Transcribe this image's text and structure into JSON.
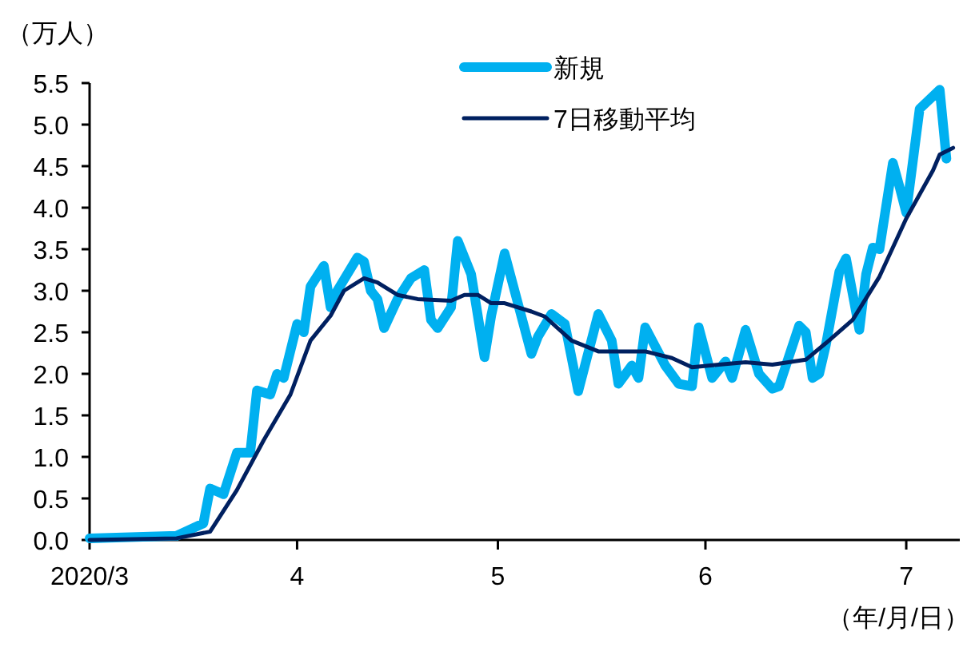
{
  "chart_data": {
    "type": "line",
    "ylabel": "（万人）",
    "xlabel": "（年/月/日）",
    "xlim": [
      "2020-03-01",
      "2020-07-09"
    ],
    "ylim": [
      0,
      5.5
    ],
    "xticks": [
      {
        "value": "2020-03-01",
        "label": "2020/3"
      },
      {
        "value": "2020-04-01",
        "label": "4"
      },
      {
        "value": "2020-05-01",
        "label": "5"
      },
      {
        "value": "2020-06-01",
        "label": "6"
      },
      {
        "value": "2020-07-01",
        "label": "7"
      }
    ],
    "yticks": [
      {
        "value": 0,
        "label": "0.0"
      },
      {
        "value": 0.5,
        "label": "0.5"
      },
      {
        "value": 1,
        "label": "1.0"
      },
      {
        "value": 1.5,
        "label": "1.5"
      },
      {
        "value": 2,
        "label": "2.0"
      },
      {
        "value": 2.5,
        "label": "2.5"
      },
      {
        "value": 3,
        "label": "3.0"
      },
      {
        "value": 3.5,
        "label": "3.5"
      },
      {
        "value": 4,
        "label": "4.0"
      },
      {
        "value": 4.5,
        "label": "4.5"
      },
      {
        "value": 5,
        "label": "5.0"
      },
      {
        "value": 5.5,
        "label": "5.5"
      }
    ],
    "legend": "top right",
    "series": [
      {
        "name": "新規",
        "color": "#00b0f0",
        "x": [
          "2020-03-01",
          "2020-03-14",
          "2020-03-18",
          "2020-03-19",
          "2020-03-21",
          "2020-03-23",
          "2020-03-25",
          "2020-03-26",
          "2020-03-28",
          "2020-03-29",
          "2020-03-30",
          "2020-04-01",
          "2020-04-02",
          "2020-04-03",
          "2020-04-05",
          "2020-04-06",
          "2020-04-07",
          "2020-04-10",
          "2020-04-11",
          "2020-04-12",
          "2020-04-13",
          "2020-04-14",
          "2020-04-16",
          "2020-04-18",
          "2020-04-20",
          "2020-04-21",
          "2020-04-22",
          "2020-04-24",
          "2020-04-25",
          "2020-04-27",
          "2020-04-29",
          "2020-04-30",
          "2020-05-02",
          "2020-05-06",
          "2020-05-07",
          "2020-05-09",
          "2020-05-11",
          "2020-05-13",
          "2020-05-14",
          "2020-05-16",
          "2020-05-18",
          "2020-05-19",
          "2020-05-21",
          "2020-05-22",
          "2020-05-23",
          "2020-05-26",
          "2020-05-28",
          "2020-05-30",
          "2020-05-31",
          "2020-06-02",
          "2020-06-04",
          "2020-06-05",
          "2020-06-07",
          "2020-06-09",
          "2020-06-11",
          "2020-06-12",
          "2020-06-15",
          "2020-06-16",
          "2020-06-17",
          "2020-06-18",
          "2020-06-19",
          "2020-06-21",
          "2020-06-22",
          "2020-06-24",
          "2020-06-25",
          "2020-06-26",
          "2020-06-27",
          "2020-06-29",
          "2020-06-30",
          "2020-07-01",
          "2020-07-03",
          "2020-07-06",
          "2020-07-07"
        ],
        "values": [
          0.02,
          0.05,
          0.2,
          0.62,
          0.55,
          1.05,
          1.05,
          1.8,
          1.75,
          2.0,
          1.95,
          2.6,
          2.5,
          3.05,
          3.3,
          2.8,
          3.0,
          3.4,
          3.35,
          3.0,
          2.9,
          2.55,
          2.9,
          3.15,
          3.25,
          2.65,
          2.55,
          2.8,
          3.6,
          3.2,
          2.2,
          2.7,
          3.45,
          2.24,
          2.45,
          2.72,
          2.6,
          1.79,
          2.1,
          2.72,
          2.4,
          1.88,
          2.1,
          1.95,
          2.56,
          2.1,
          1.88,
          1.85,
          2.56,
          1.95,
          2.15,
          1.95,
          2.53,
          2.0,
          1.82,
          1.85,
          2.58,
          2.5,
          1.95,
          2.0,
          2.35,
          3.23,
          3.39,
          2.53,
          3.2,
          3.52,
          3.5,
          4.54,
          4.25,
          3.94,
          5.19,
          5.42,
          4.59
        ]
      },
      {
        "name": "7日移動平均",
        "color": "#002060",
        "x": [
          "2020-03-01",
          "2020-03-14",
          "2020-03-19",
          "2020-03-23",
          "2020-03-27",
          "2020-03-31",
          "2020-04-03",
          "2020-04-06",
          "2020-04-08",
          "2020-04-11",
          "2020-04-13",
          "2020-04-16",
          "2020-04-19",
          "2020-04-24",
          "2020-04-26",
          "2020-04-28",
          "2020-04-30",
          "2020-05-02",
          "2020-05-06",
          "2020-05-08",
          "2020-05-12",
          "2020-05-16",
          "2020-05-20",
          "2020-05-23",
          "2020-05-27",
          "2020-05-30",
          "2020-06-03",
          "2020-06-07",
          "2020-06-11",
          "2020-06-16",
          "2020-06-19",
          "2020-06-23",
          "2020-06-27",
          "2020-07-01",
          "2020-07-05",
          "2020-07-06",
          "2020-07-08"
        ],
        "values": [
          0.0,
          0.02,
          0.1,
          0.6,
          1.2,
          1.75,
          2.4,
          2.7,
          3.0,
          3.15,
          3.1,
          2.95,
          2.9,
          2.88,
          2.95,
          2.95,
          2.85,
          2.85,
          2.75,
          2.69,
          2.4,
          2.27,
          2.27,
          2.27,
          2.19,
          2.08,
          2.11,
          2.14,
          2.11,
          2.17,
          2.37,
          2.65,
          3.17,
          3.87,
          4.45,
          4.64,
          4.72
        ]
      }
    ]
  }
}
